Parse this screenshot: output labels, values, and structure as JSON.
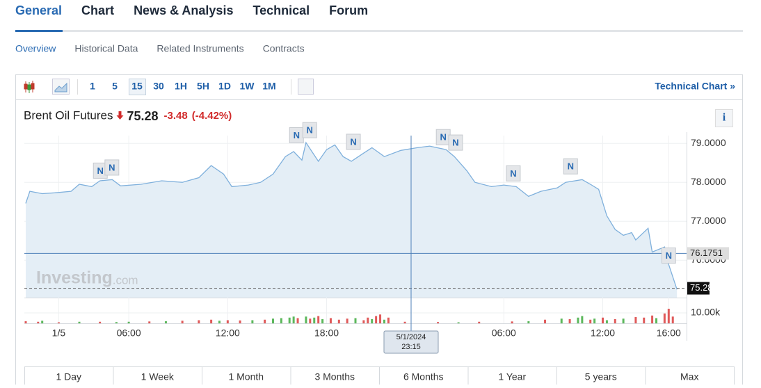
{
  "ui": {
    "tabs": [
      "General",
      "Chart",
      "News & Analysis",
      "Technical",
      "Forum"
    ],
    "subtabs": [
      "Overview",
      "Historical Data",
      "Related Instruments",
      "Contracts"
    ],
    "intervals": [
      "1",
      "5",
      "15",
      "30",
      "1H",
      "5H",
      "1D",
      "1W",
      "1M"
    ],
    "technical_link": "Technical Chart »",
    "info": "i",
    "ranges": [
      "1 Day",
      "1 Week",
      "1 Month",
      "3 Months",
      "6 Months",
      "1 Year",
      "5 years",
      "Max"
    ],
    "watermark": "Investing",
    "watermark_suffix": ".com"
  },
  "header": {
    "name": "Brent Oil Futures",
    "price": "75.28",
    "change": "-3.48",
    "change_pct": "(-4.42%)"
  },
  "chart_data": {
    "type": "area",
    "title": "Brent Oil Futures",
    "color": "#7fb0dc",
    "fill": "#e4eef6",
    "x": [
      0,
      1,
      4,
      7,
      11,
      13,
      16,
      18,
      21,
      23,
      28,
      33,
      38,
      42,
      45,
      48,
      50,
      54,
      57,
      60,
      63,
      65,
      67,
      68,
      71,
      73,
      75,
      77,
      79,
      82,
      84,
      87,
      91,
      95,
      98,
      102,
      104,
      107,
      109,
      113,
      116,
      119,
      122,
      125,
      129,
      131,
      135,
      137,
      139,
      141,
      143,
      145,
      147,
      148,
      151,
      152,
      155,
      156,
      158
    ],
    "values": [
      77.46,
      77.77,
      77.71,
      77.73,
      77.77,
      77.95,
      77.89,
      78.04,
      78.07,
      77.91,
      77.95,
      78.04,
      78.0,
      78.12,
      78.43,
      78.21,
      77.89,
      77.93,
      78.0,
      78.21,
      78.66,
      78.79,
      78.57,
      79.02,
      78.54,
      78.84,
      78.96,
      78.66,
      78.54,
      78.75,
      78.89,
      78.66,
      78.82,
      78.89,
      78.93,
      78.84,
      78.66,
      78.3,
      78.0,
      77.89,
      77.93,
      77.89,
      77.64,
      77.77,
      77.86,
      78.0,
      78.07,
      77.95,
      77.82,
      77.14,
      76.79,
      76.64,
      76.71,
      76.52,
      76.82,
      76.21,
      76.34,
      75.89,
      75.25
    ],
    "xlim": [
      0,
      160
    ],
    "xticks": [
      {
        "value": 8,
        "label": "1/5"
      },
      {
        "value": 25,
        "label": "06:00"
      },
      {
        "value": 49,
        "label": "12:00"
      },
      {
        "value": 73,
        "label": "18:00"
      },
      {
        "value": 116,
        "label": "06:00"
      },
      {
        "value": 140,
        "label": "12:00"
      },
      {
        "value": 156,
        "label": "16:00"
      }
    ],
    "ylim": [
      75.04,
      79.2
    ],
    "yticks": [
      {
        "value": 76,
        "label": "76.0000"
      },
      {
        "value": 77,
        "label": "77.0000"
      },
      {
        "value": 78,
        "label": "78.0000"
      },
      {
        "value": 79,
        "label": "79.0000"
      }
    ],
    "last_price": {
      "value": 75.28,
      "label": "75.2800"
    },
    "crosshair": {
      "x": 93.5,
      "y": 76.1751,
      "x_label": [
        "5/1/2024",
        "23:15"
      ]
    },
    "annotations": [
      {
        "text": "N",
        "x": 18.1,
        "y": 78.3
      },
      {
        "text": "N",
        "x": 20.9,
        "y": 78.38
      },
      {
        "text": "N",
        "x": 65.7,
        "y": 79.21
      },
      {
        "text": "N",
        "x": 68.9,
        "y": 79.34
      },
      {
        "text": "N",
        "x": 79.5,
        "y": 79.04
      },
      {
        "text": "N",
        "x": 101.3,
        "y": 79.16
      },
      {
        "text": "N",
        "x": 104.3,
        "y": 79.02
      },
      {
        "text": "N",
        "x": 118.3,
        "y": 78.23
      },
      {
        "text": "N",
        "x": 132.2,
        "y": 78.41
      },
      {
        "text": "N",
        "x": 156,
        "y": 76.12
      }
    ],
    "volume": {
      "x": [
        0,
        3,
        4,
        8,
        13,
        18,
        22,
        25,
        30,
        34,
        38,
        42,
        45,
        47,
        49,
        52,
        55,
        58,
        60,
        62,
        64,
        65,
        66,
        68,
        69,
        70,
        71,
        72,
        74,
        76,
        78,
        80,
        82,
        83,
        84,
        85,
        86,
        87,
        88,
        92,
        100,
        105,
        110,
        118,
        122,
        126,
        130,
        132,
        134,
        135,
        137,
        138,
        140,
        141,
        143,
        145,
        148,
        150,
        152,
        153,
        155,
        156,
        157
      ],
      "values": [
        2000,
        1500,
        2500,
        1000,
        1500,
        1500,
        1200,
        1500,
        1800,
        2000,
        2500,
        3000,
        3500,
        2500,
        3000,
        2800,
        3000,
        3500,
        4500,
        5000,
        5500,
        6500,
        5000,
        6500,
        4500,
        5500,
        7000,
        4000,
        5000,
        3500,
        4500,
        5000,
        3000,
        5500,
        4000,
        7000,
        8500,
        3500,
        5500,
        1500,
        1200,
        1000,
        1500,
        1800,
        2000,
        3500,
        4500,
        4000,
        5500,
        7000,
        3500,
        4500,
        5500,
        3000,
        4000,
        4500,
        6000,
        5500,
        7500,
        5000,
        9500,
        14000,
        6500
      ],
      "colors": [
        "#e05a5a",
        "#e05a5a",
        "#5cb85c",
        "#e05a5a",
        "#5cb85c",
        "#e05a5a",
        "#5cb85c",
        "#5cb85c",
        "#e05a5a",
        "#5cb85c",
        "#e05a5a",
        "#e05a5a",
        "#e05a5a",
        "#5cb85c",
        "#e05a5a",
        "#e05a5a",
        "#5cb85c",
        "#e05a5a",
        "#5cb85c",
        "#5cb85c",
        "#5cb85c",
        "#5cb85c",
        "#e05a5a",
        "#5cb85c",
        "#e05a5a",
        "#5cb85c",
        "#e05a5a",
        "#5cb85c",
        "#e05a5a",
        "#e05a5a",
        "#e05a5a",
        "#5cb85c",
        "#e05a5a",
        "#e05a5a",
        "#5cb85c",
        "#e05a5a",
        "#e05a5a",
        "#5cb85c",
        "#e05a5a",
        "#e05a5a",
        "#e05a5a",
        "#5cb85c",
        "#e05a5a",
        "#e05a5a",
        "#5cb85c",
        "#e05a5a",
        "#5cb85c",
        "#e05a5a",
        "#5cb85c",
        "#5cb85c",
        "#e05a5a",
        "#5cb85c",
        "#e05a5a",
        "#5cb85c",
        "#e05a5a",
        "#5cb85c",
        "#e05a5a",
        "#e05a5a",
        "#e05a5a",
        "#5cb85c",
        "#e05a5a",
        "#e05a5a",
        "#e05a5a"
      ],
      "ylim": [
        0,
        18700
      ],
      "yticks": [
        {
          "value": 10000,
          "label": "10.00k"
        }
      ]
    }
  }
}
